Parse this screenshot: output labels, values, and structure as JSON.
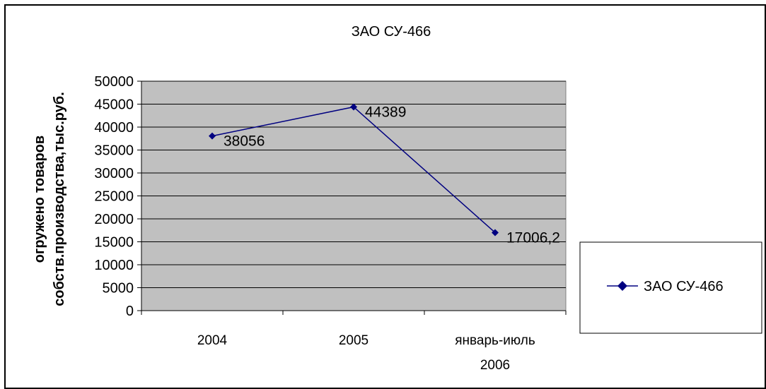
{
  "chart_data": {
    "type": "line",
    "title": "ЗАО СУ-466",
    "ylabel_lines": [
      "огружено товаров",
      "собств.производства,тыс.руб."
    ],
    "xlabel": "",
    "categories": [
      [
        "2004"
      ],
      [
        "2005"
      ],
      [
        "январь-июль",
        "2006"
      ]
    ],
    "series": [
      {
        "name": "ЗАО СУ-466",
        "values": [
          38056,
          44389,
          17006.2
        ],
        "value_labels": [
          "38056",
          "44389",
          "17006,2"
        ],
        "color": "#000080"
      }
    ],
    "ylim": [
      0,
      50000
    ],
    "ytick_step": 5000,
    "grid": true,
    "plot_background": "#c0c0c0",
    "legend_position": "right"
  }
}
